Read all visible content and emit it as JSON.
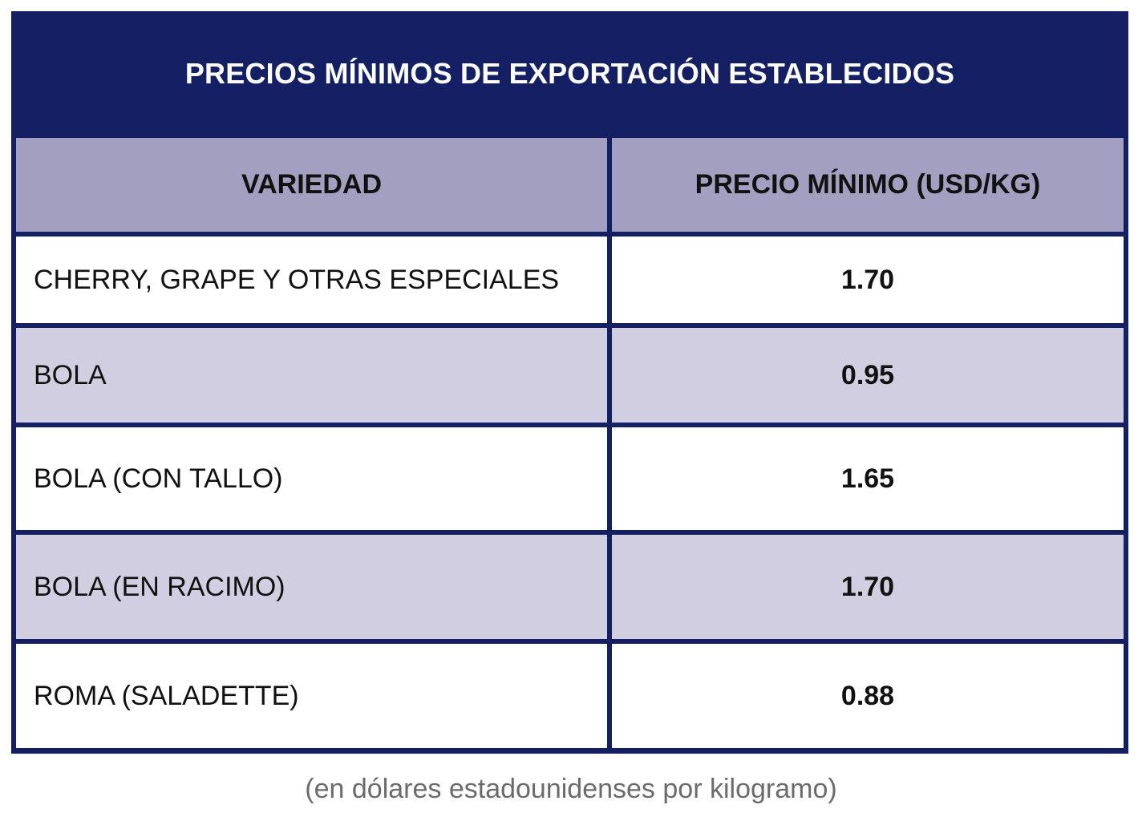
{
  "chart_data": {
    "type": "table",
    "title": "PRECIOS MÍNIMOS DE EXPORTACIÓN ESTABLECIDOS",
    "columns": [
      "VARIEDAD",
      "PRECIO MÍNIMO (USD/KG)"
    ],
    "rows": [
      {
        "variedad": "CHERRY, GRAPE Y OTRAS ESPECIALES",
        "precio": "1.70"
      },
      {
        "variedad": "BOLA",
        "precio": "0.95"
      },
      {
        "variedad": "BOLA (CON TALLO)",
        "precio": "1.65"
      },
      {
        "variedad": "BOLA (EN RACIMO)",
        "precio": "1.70"
      },
      {
        "variedad": "ROMA (SALADETTE)",
        "precio": "0.88"
      }
    ],
    "note": "(en dólares estadounidenses por kilogramo)"
  },
  "colors": {
    "header_navy": "#152064",
    "column_header": "#a29fc0",
    "row_alt": "#d0cee0",
    "row_plain": "#ffffff"
  }
}
